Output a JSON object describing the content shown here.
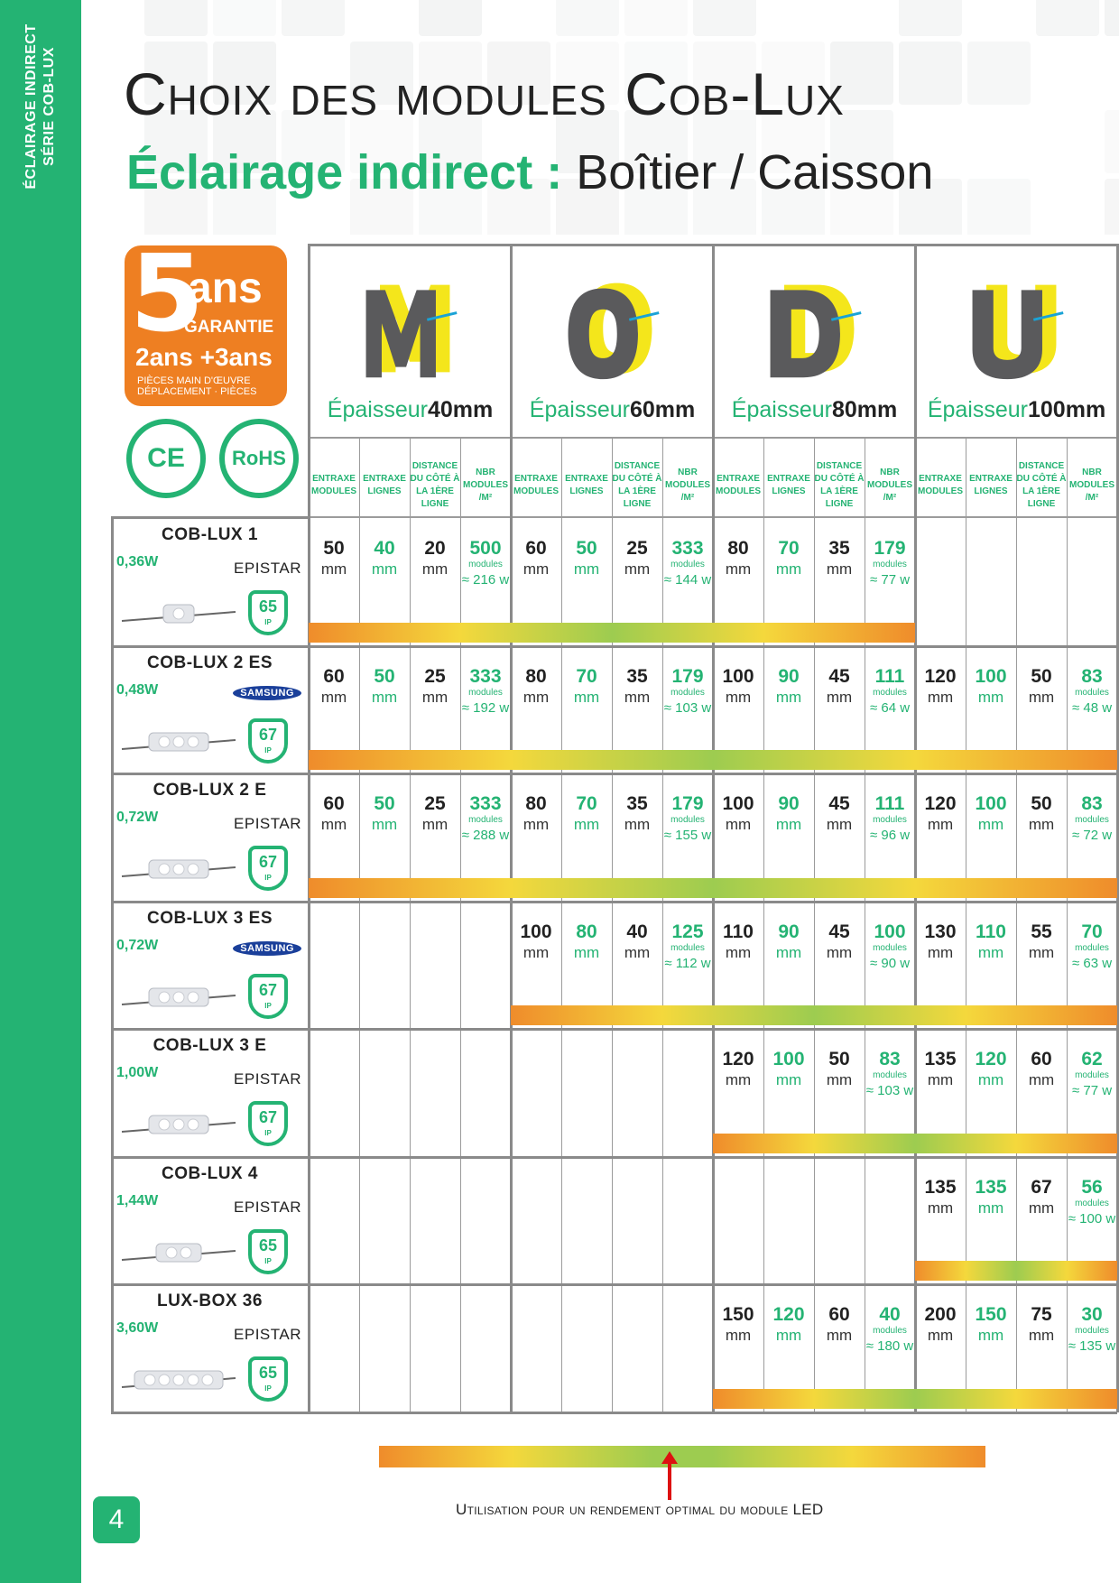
{
  "sidebar": {
    "line1": "ÉCLAIRAGE INDIRECT",
    "line2": "SÉRIE COB-LUX"
  },
  "page_number": "4",
  "title": "Choix des modules Cob-Lux",
  "subtitle": {
    "accent": "Éclairage indirect :",
    "rest": "Boîtier / Caisson"
  },
  "badge": {
    "big": "5",
    "ans": "ans",
    "garantie": "GARANTIE",
    "sub": "2ans +3ans",
    "line1": "PIÈCES MAIN D'ŒUVRE",
    "line2": "DÉPLACEMENT · PIÈCES"
  },
  "certs": [
    "CE",
    "RoHS"
  ],
  "letters": [
    {
      "letter": "M",
      "label": "Épaisseur",
      "value": "40mm"
    },
    {
      "letter": "O",
      "label": "Épaisseur",
      "value": "60mm"
    },
    {
      "letter": "D",
      "label": "Épaisseur",
      "value": "80mm"
    },
    {
      "letter": "U",
      "label": "Épaisseur",
      "value": "100mm"
    }
  ],
  "column_headers": [
    "ENTRAXE MODULES",
    "ENTRAXE LIGNES",
    "DISTANCE DU CÔTÉ À LA 1ÈRE LIGNE",
    "NBR MODULES /M²"
  ],
  "unit_mm": "mm",
  "unit_modules": "modules",
  "rows": [
    {
      "name": "COB-LUX 1",
      "watt": "0,36W",
      "brand": "EPISTAR",
      "ip": "65",
      "groups": [
        {
          "em": "50",
          "el": "40",
          "d": "20",
          "n": "500",
          "w": "≈ 216 w"
        },
        {
          "em": "60",
          "el": "50",
          "d": "25",
          "n": "333",
          "w": "≈ 144 w"
        },
        {
          "em": "80",
          "el": "70",
          "d": "35",
          "n": "179",
          "w": "≈ 77 w"
        },
        null
      ]
    },
    {
      "name": "COB-LUX 2 ES",
      "watt": "0,48W",
      "brand": "SAMSUNG",
      "ip": "67",
      "groups": [
        {
          "em": "60",
          "el": "50",
          "d": "25",
          "n": "333",
          "w": "≈ 192 w"
        },
        {
          "em": "80",
          "el": "70",
          "d": "35",
          "n": "179",
          "w": "≈ 103 w"
        },
        {
          "em": "100",
          "el": "90",
          "d": "45",
          "n": "111",
          "w": "≈ 64 w"
        },
        {
          "em": "120",
          "el": "100",
          "d": "50",
          "n": "83",
          "w": "≈ 48 w"
        }
      ]
    },
    {
      "name": "COB-LUX 2 E",
      "watt": "0,72W",
      "brand": "EPISTAR",
      "ip": "67",
      "groups": [
        {
          "em": "60",
          "el": "50",
          "d": "25",
          "n": "333",
          "w": "≈ 288 w"
        },
        {
          "em": "80",
          "el": "70",
          "d": "35",
          "n": "179",
          "w": "≈ 155 w"
        },
        {
          "em": "100",
          "el": "90",
          "d": "45",
          "n": "111",
          "w": "≈ 96 w"
        },
        {
          "em": "120",
          "el": "100",
          "d": "50",
          "n": "83",
          "w": "≈ 72 w"
        }
      ]
    },
    {
      "name": "COB-LUX 3 ES",
      "watt": "0,72W",
      "brand": "SAMSUNG",
      "ip": "67",
      "groups": [
        null,
        {
          "em": "100",
          "el": "80",
          "d": "40",
          "n": "125",
          "w": "≈ 112 w"
        },
        {
          "em": "110",
          "el": "90",
          "d": "45",
          "n": "100",
          "w": "≈ 90 w"
        },
        {
          "em": "130",
          "el": "110",
          "d": "55",
          "n": "70",
          "w": "≈ 63 w"
        }
      ]
    },
    {
      "name": "COB-LUX 3 E",
      "watt": "1,00W",
      "brand": "EPISTAR",
      "ip": "67",
      "groups": [
        null,
        null,
        {
          "em": "120",
          "el": "100",
          "d": "50",
          "n": "83",
          "w": "≈ 103 w"
        },
        {
          "em": "135",
          "el": "120",
          "d": "60",
          "n": "62",
          "w": "≈ 77 w"
        }
      ]
    },
    {
      "name": "COB-LUX 4",
      "watt": "1,44W",
      "brand": "EPISTAR",
      "ip": "65",
      "groups": [
        null,
        null,
        null,
        {
          "em": "135",
          "el": "135",
          "d": "67",
          "n": "56",
          "w": "≈ 100 w"
        }
      ]
    },
    {
      "name": "LUX-BOX 36",
      "watt": "3,60W",
      "brand": "EPISTAR",
      "ip": "65",
      "groups": [
        null,
        null,
        {
          "em": "150",
          "el": "120",
          "d": "60",
          "n": "40",
          "w": "≈ 180 w"
        },
        {
          "em": "200",
          "el": "150",
          "d": "75",
          "n": "30",
          "w": "≈ 135 w"
        }
      ]
    }
  ],
  "legend": "Utilisation pour un rendement optimal du module LED",
  "colors": {
    "green": "#24b373",
    "orange": "#ee7f22",
    "yellow": "#f4e61b",
    "grey": "#5a5a5c",
    "arrow": "#1aa3d6"
  }
}
